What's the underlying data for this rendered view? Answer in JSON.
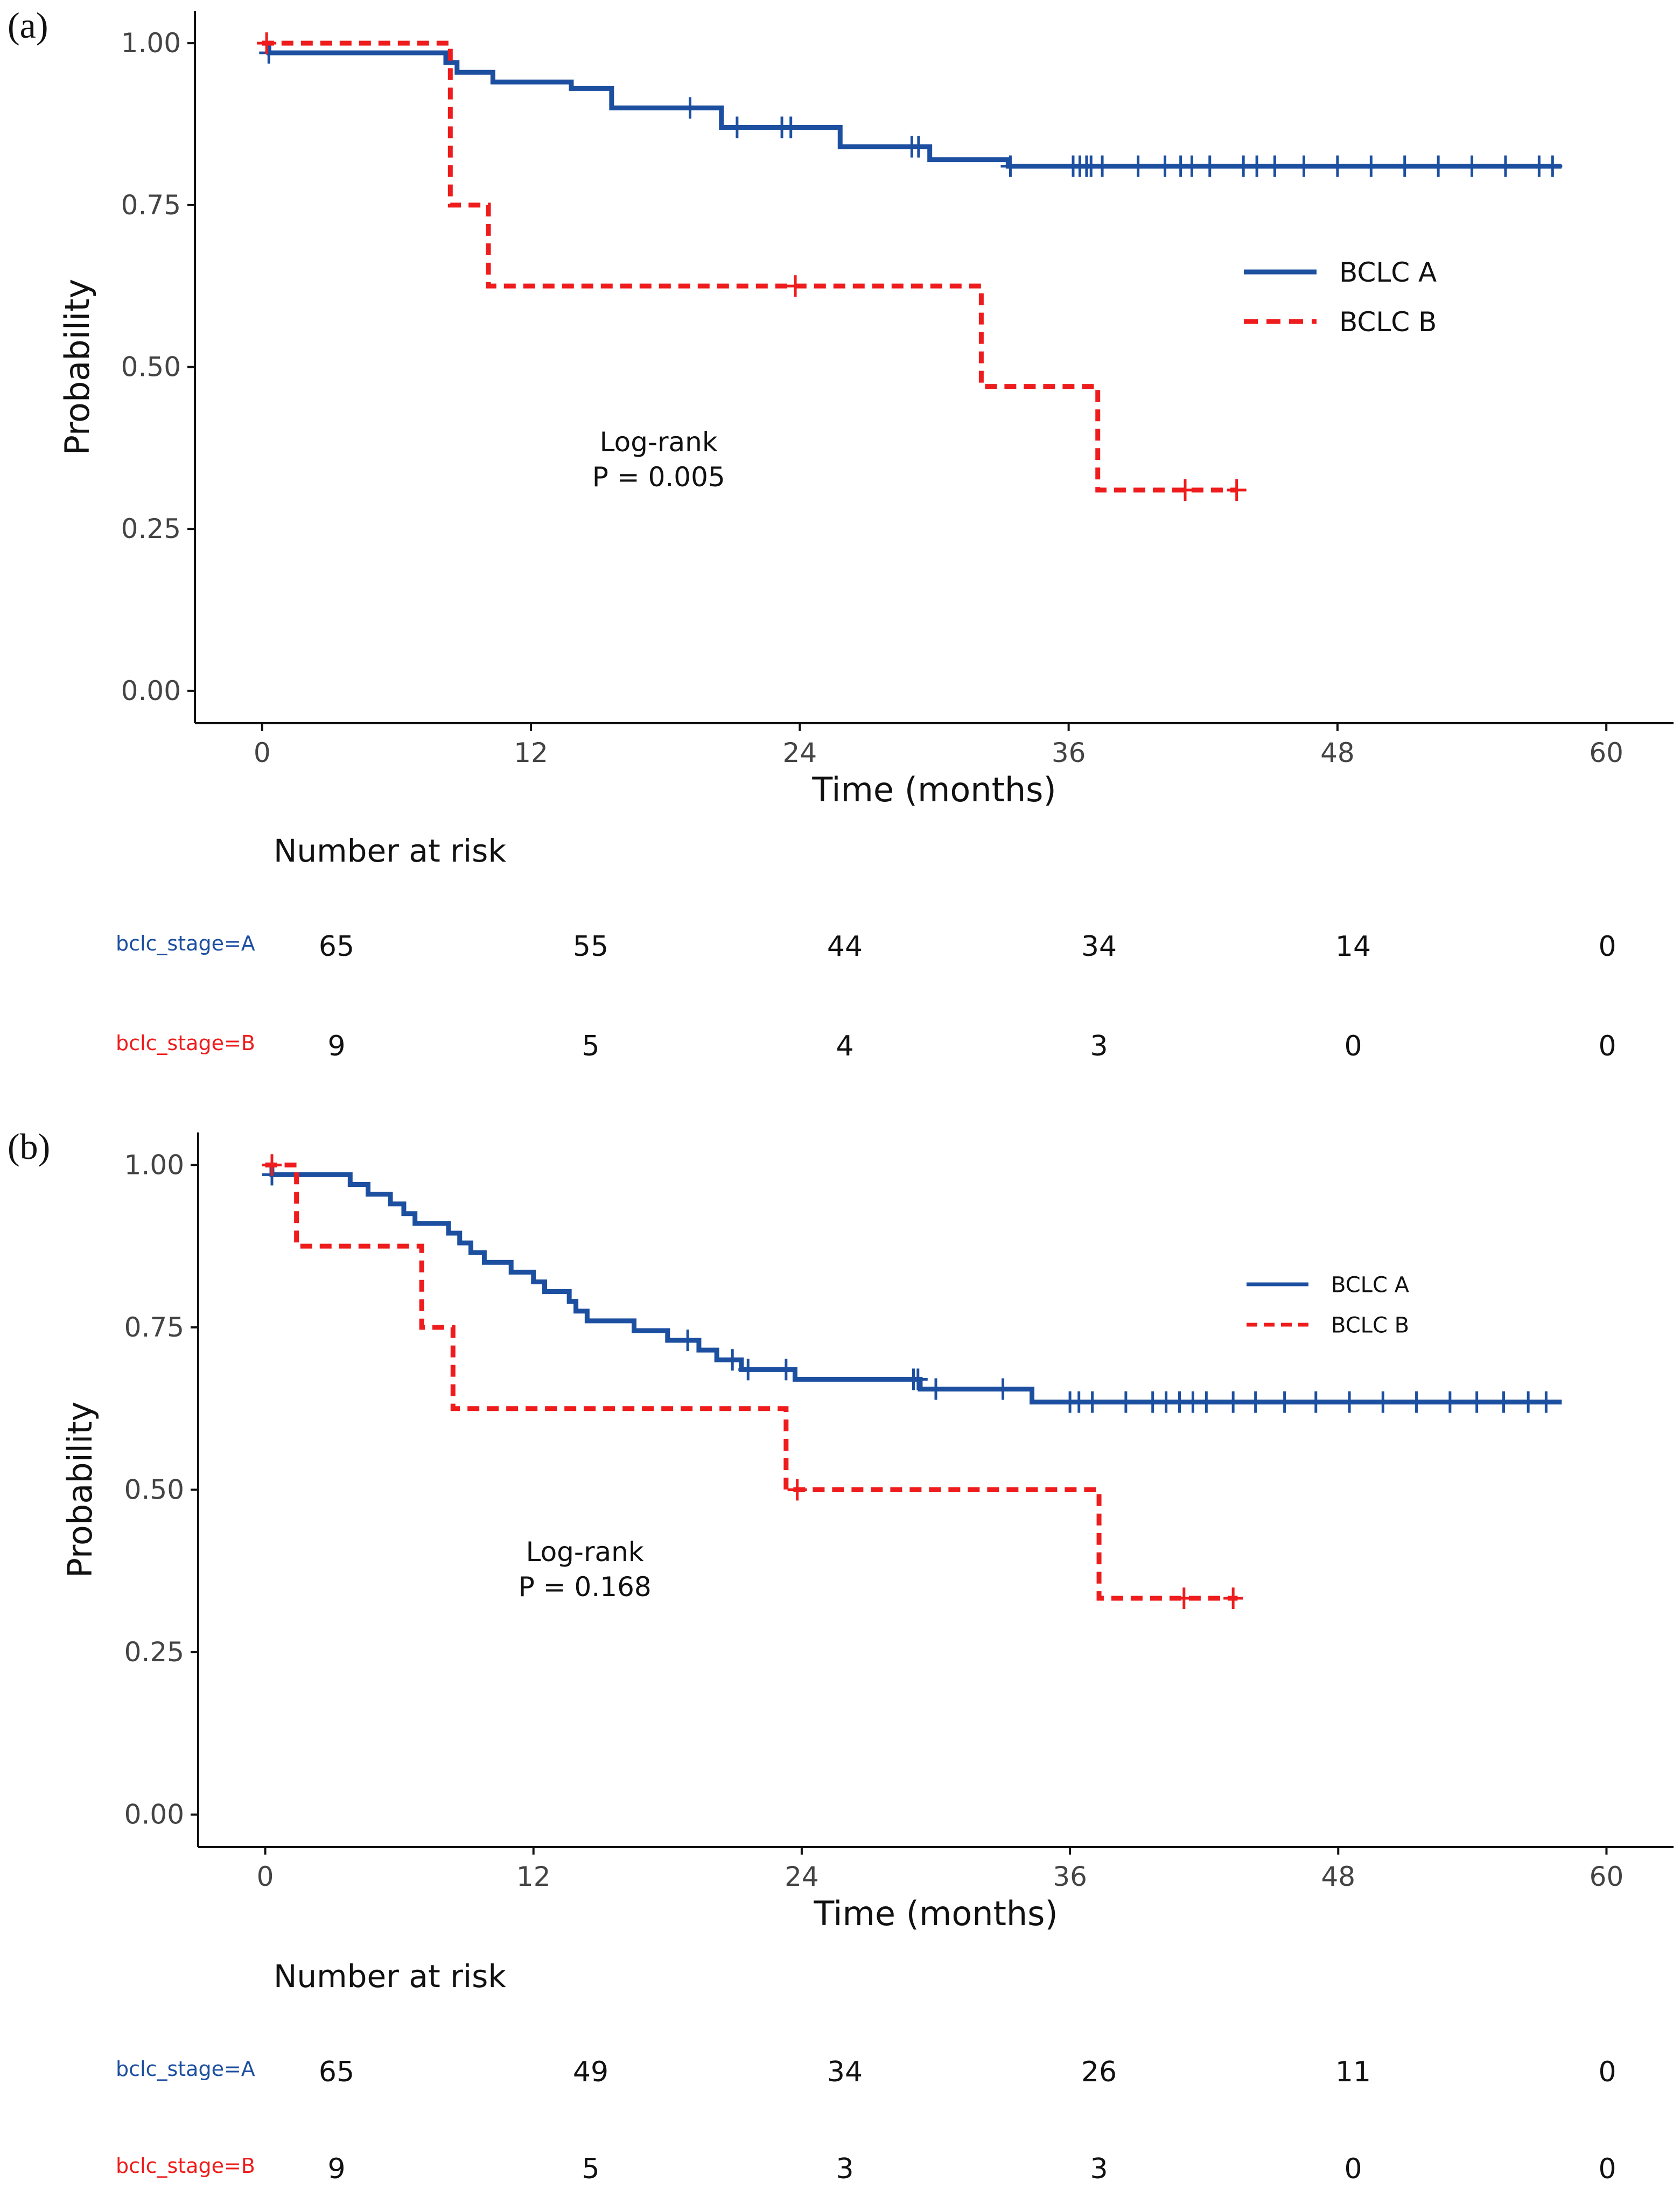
{
  "colors": {
    "A": "#1c4fa0",
    "B": "#ee1c1c",
    "axis": "#111111",
    "tick_text": "#444444"
  },
  "chart_data": [
    {
      "panel_label": "(a)",
      "type": "line",
      "subtype": "kaplan-meier",
      "xlabel": "Time (months)",
      "ylabel": "Probability",
      "xlim": [
        -3,
        63
      ],
      "ylim": [
        -0.05,
        1.05
      ],
      "xticks": [
        0,
        12,
        24,
        36,
        48,
        60
      ],
      "xtick_labels": [
        "0",
        "12",
        "24",
        "36",
        "48",
        "60"
      ],
      "yticks": [
        0,
        0.25,
        0.5,
        0.75,
        1.0
      ],
      "ytick_labels": [
        "0.00",
        "0.25",
        "0.50",
        "0.75",
        "1.00"
      ],
      "grid": false,
      "legend_position": "top-right",
      "legend_size": "large",
      "annotation": [
        "Log-rank",
        "P = 0.005"
      ],
      "annotation_at": [
        17.7,
        0.37
      ],
      "series": [
        {
          "name": "BCLC A",
          "key": "A",
          "style": "solid",
          "steps": [
            [
              0,
              1.0
            ],
            [
              0.3,
              0.985
            ],
            [
              8.2,
              0.97
            ],
            [
              8.7,
              0.955
            ],
            [
              10.3,
              0.94
            ],
            [
              13.8,
              0.93
            ],
            [
              15.6,
              0.9
            ],
            [
              20.5,
              0.87
            ],
            [
              25.8,
              0.84
            ],
            [
              29.8,
              0.82
            ],
            [
              33.3,
              0.81
            ],
            [
              58,
              0.81
            ]
          ],
          "censor": [
            0.3,
            19.1,
            21.2,
            23.2,
            23.6,
            29.0,
            29.3,
            33.4,
            36.2,
            36.5,
            36.8,
            37.0,
            37.5,
            39.1,
            40.3,
            41.0,
            41.5,
            42.3,
            43.8,
            44.4,
            45.2,
            46.5,
            48.0,
            49.5,
            51.0,
            52.5,
            54.0,
            55.5,
            57.0,
            57.6
          ]
        },
        {
          "name": "BCLC B",
          "key": "B",
          "style": "dashed",
          "steps": [
            [
              0,
              1.0
            ],
            [
              8.4,
              0.75
            ],
            [
              10.1,
              0.625
            ],
            [
              32.1,
              0.47
            ],
            [
              37.3,
              0.31
            ],
            [
              43.5,
              0.31
            ]
          ],
          "censor": [
            0.2,
            23.8,
            41.2,
            43.5
          ]
        }
      ],
      "risk_table": {
        "title": "Number at risk",
        "times": [
          0,
          12,
          24,
          36,
          48,
          60
        ],
        "rows": [
          {
            "label": "bclc_stage=A",
            "key": "A",
            "values": [
              "65",
              "55",
              "44",
              "34",
              "14",
              "0"
            ]
          },
          {
            "label": "bclc_stage=B",
            "key": "B",
            "values": [
              "9",
              "5",
              "4",
              "3",
              "0",
              "0"
            ]
          }
        ]
      }
    },
    {
      "panel_label": "(b)",
      "type": "line",
      "subtype": "kaplan-meier",
      "xlabel": "Time (months)",
      "ylabel": "Probability",
      "xlim": [
        -3,
        63
      ],
      "ylim": [
        -0.05,
        1.05
      ],
      "xticks": [
        0,
        12,
        24,
        36,
        48,
        60
      ],
      "xtick_labels": [
        "0",
        "12",
        "24",
        "36",
        "48",
        "60"
      ],
      "yticks": [
        0,
        0.25,
        0.5,
        0.75,
        1.0
      ],
      "ytick_labels": [
        "0.00",
        "0.25",
        "0.50",
        "0.75",
        "1.00"
      ],
      "grid": false,
      "legend_position": "top-right",
      "legend_size": "small",
      "annotation": [
        "Log-rank",
        "P = 0.168"
      ],
      "annotation_at": [
        14.3,
        0.39
      ],
      "series": [
        {
          "name": "BCLC A",
          "key": "A",
          "style": "solid",
          "steps": [
            [
              0,
              1.0
            ],
            [
              0.3,
              0.985
            ],
            [
              3.8,
              0.97
            ],
            [
              4.6,
              0.955
            ],
            [
              5.6,
              0.94
            ],
            [
              6.2,
              0.925
            ],
            [
              6.7,
              0.91
            ],
            [
              8.2,
              0.895
            ],
            [
              8.7,
              0.88
            ],
            [
              9.2,
              0.865
            ],
            [
              9.8,
              0.85
            ],
            [
              11.0,
              0.835
            ],
            [
              12.0,
              0.82
            ],
            [
              12.5,
              0.805
            ],
            [
              13.6,
              0.79
            ],
            [
              13.9,
              0.775
            ],
            [
              14.4,
              0.76
            ],
            [
              16.5,
              0.745
            ],
            [
              18.0,
              0.73
            ],
            [
              19.4,
              0.715
            ],
            [
              20.2,
              0.7
            ],
            [
              21.3,
              0.685
            ],
            [
              23.7,
              0.67
            ],
            [
              29.3,
              0.655
            ],
            [
              34.3,
              0.635
            ],
            [
              58,
              0.635
            ]
          ],
          "censor": [
            0.3,
            18.9,
            20.9,
            21.6,
            23.3,
            29.0,
            29.2,
            30.0,
            33.0,
            36.0,
            36.4,
            37.0,
            38.5,
            39.7,
            40.3,
            40.9,
            41.5,
            42.1,
            43.3,
            44.3,
            45.6,
            47.0,
            48.5,
            50.0,
            51.5,
            53.0,
            54.2,
            55.4,
            56.5,
            57.3
          ]
        },
        {
          "name": "BCLC B",
          "key": "B",
          "style": "dashed",
          "steps": [
            [
              0,
              1.0
            ],
            [
              1.4,
              0.875
            ],
            [
              7.0,
              0.75
            ],
            [
              8.4,
              0.625
            ],
            [
              23.3,
              0.5
            ],
            [
              37.3,
              0.333
            ],
            [
              43.5,
              0.333
            ]
          ],
          "censor": [
            0.3,
            23.8,
            41.1,
            43.3
          ]
        }
      ],
      "risk_table": {
        "title": "Number at risk",
        "times": [
          0,
          12,
          24,
          36,
          48,
          60
        ],
        "rows": [
          {
            "label": "bclc_stage=A",
            "key": "A",
            "values": [
              "65",
              "49",
              "34",
              "26",
              "11",
              "0"
            ]
          },
          {
            "label": "bclc_stage=B",
            "key": "B",
            "values": [
              "9",
              "5",
              "3",
              "3",
              "0",
              "0"
            ]
          }
        ]
      }
    }
  ]
}
